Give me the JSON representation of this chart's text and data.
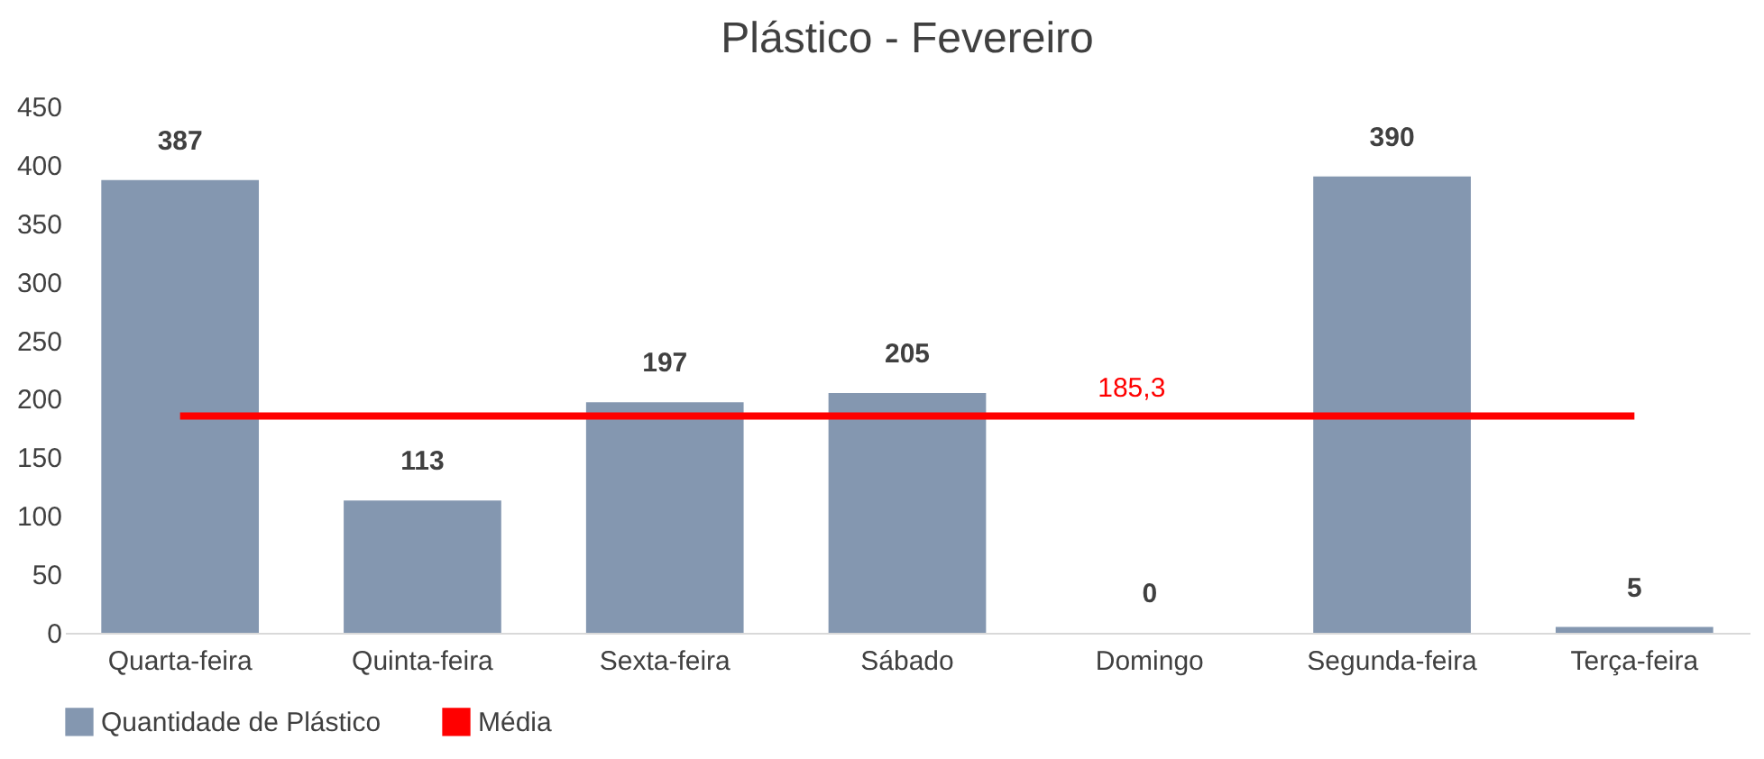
{
  "chart_data": {
    "type": "bar",
    "title": "Plástico - Fevereiro",
    "categories": [
      "Quarta-feira",
      "Quinta-feira",
      "Sexta-feira",
      "Sábado",
      "Domingo",
      "Segunda-feira",
      "Terça-feira"
    ],
    "series": [
      {
        "name": "Quantidade de Plástico",
        "color": "#8497b0",
        "values": [
          387,
          113,
          197,
          205,
          0,
          390,
          5
        ],
        "value_labels": [
          "387",
          "113",
          "197",
          "205",
          "0",
          "390",
          "5"
        ]
      },
      {
        "name": "Média",
        "type": "line",
        "color": "#ff0000",
        "values": [
          185.3,
          185.3,
          185.3,
          185.3,
          185.3,
          185.3,
          185.3
        ],
        "value_labels": [
          null,
          null,
          null,
          null,
          "185,3",
          null,
          null
        ]
      }
    ],
    "ylim": [
      0,
      450
    ],
    "yticks": [
      0,
      50,
      100,
      150,
      200,
      250,
      300,
      350,
      400,
      450
    ],
    "grid": false,
    "legend": "bottom"
  }
}
